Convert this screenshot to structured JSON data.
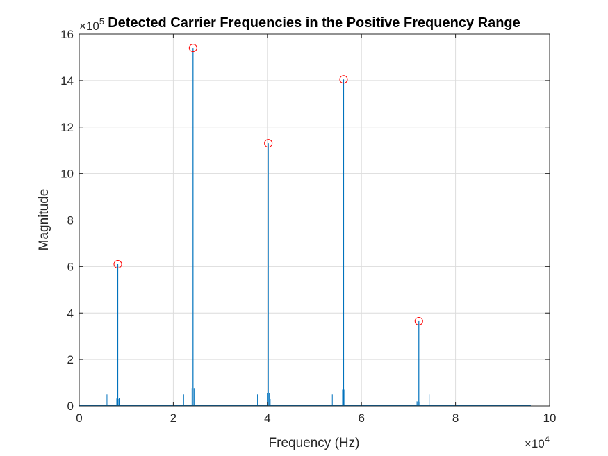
{
  "chart_data": {
    "type": "line",
    "title": "Detected Carrier Frequencies in the Positive Frequency Range",
    "xlabel": "Frequency (Hz)",
    "ylabel": "Magnitude",
    "xlim": [
      0,
      100000
    ],
    "ylim": [
      0,
      1600000
    ],
    "x_multiplier": "×10",
    "x_exponent": "4",
    "y_multiplier": "×10",
    "y_exponent": "5",
    "x_ticks": [
      0,
      20000,
      40000,
      60000,
      80000,
      100000
    ],
    "x_tick_labels": [
      "0",
      "2",
      "4",
      "6",
      "8",
      "10"
    ],
    "y_ticks": [
      0,
      200000,
      400000,
      600000,
      800000,
      1000000,
      1200000,
      1400000,
      1600000
    ],
    "y_tick_labels": [
      "0",
      "2",
      "4",
      "6",
      "8",
      "10",
      "12",
      "14",
      "16"
    ],
    "grid": true,
    "line_color": "#0072bd",
    "marker_color": "#ff0000",
    "series": [
      {
        "values_desc": "FFT magnitude spectrum",
        "x_end": 96000,
        "peaks": [
          {
            "x": 8200,
            "y": 610000
          },
          {
            "x": 24200,
            "y": 1540000
          },
          {
            "x": 40200,
            "y": 1130000
          },
          {
            "x": 56200,
            "y": 1405000
          },
          {
            "x": 72200,
            "y": 365000
          }
        ],
        "side_spikes": [
          {
            "x": 5900,
            "y": 50000
          },
          {
            "x": 8000,
            "y": 35000
          },
          {
            "x": 8500,
            "y": 35000
          },
          {
            "x": 22200,
            "y": 50000
          },
          {
            "x": 37900,
            "y": 50000
          },
          {
            "x": 40600,
            "y": 30000
          },
          {
            "x": 53800,
            "y": 50000
          },
          {
            "x": 71800,
            "y": 20000
          },
          {
            "x": 74400,
            "y": 50000
          }
        ]
      }
    ],
    "detected_markers": [
      {
        "x": 8200,
        "y": 610000
      },
      {
        "x": 24200,
        "y": 1540000
      },
      {
        "x": 40200,
        "y": 1130000
      },
      {
        "x": 56200,
        "y": 1405000
      },
      {
        "x": 72200,
        "y": 365000
      }
    ]
  }
}
